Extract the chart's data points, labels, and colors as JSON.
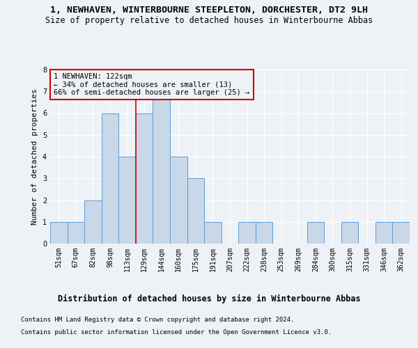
{
  "title": "1, NEWHAVEN, WINTERBOURNE STEEPLETON, DORCHESTER, DT2 9LH",
  "subtitle": "Size of property relative to detached houses in Winterbourne Abbas",
  "xlabel": "Distribution of detached houses by size in Winterbourne Abbas",
  "ylabel": "Number of detached properties",
  "footnote1": "Contains HM Land Registry data © Crown copyright and database right 2024.",
  "footnote2": "Contains public sector information licensed under the Open Government Licence v3.0.",
  "categories": [
    "51sqm",
    "67sqm",
    "82sqm",
    "98sqm",
    "113sqm",
    "129sqm",
    "144sqm",
    "160sqm",
    "175sqm",
    "191sqm",
    "207sqm",
    "222sqm",
    "238sqm",
    "253sqm",
    "269sqm",
    "284sqm",
    "300sqm",
    "315sqm",
    "331sqm",
    "346sqm",
    "362sqm"
  ],
  "values": [
    1,
    1,
    2,
    6,
    4,
    6,
    7,
    4,
    3,
    1,
    0,
    1,
    1,
    0,
    0,
    1,
    0,
    1,
    0,
    1,
    1
  ],
  "bar_color": "#c8d8e8",
  "bar_edgecolor": "#5b9bd5",
  "red_line_x": 4.5,
  "annotation_text": "1 NEWHAVEN: 122sqm\n← 34% of detached houses are smaller (13)\n66% of semi-detached houses are larger (25) →",
  "annotation_box_edgecolor": "#cc0000",
  "annotation_fontsize": 7.5,
  "ylim": [
    0,
    8
  ],
  "yticks": [
    0,
    1,
    2,
    3,
    4,
    5,
    6,
    7,
    8
  ],
  "background_color": "#eef2f6",
  "plot_background": "#eef2f6",
  "grid_color": "#ffffff",
  "title_fontsize": 9.5,
  "subtitle_fontsize": 8.5,
  "xlabel_fontsize": 8.5,
  "ylabel_fontsize": 8.0,
  "tick_fontsize": 7.0,
  "footnote_fontsize": 6.5
}
